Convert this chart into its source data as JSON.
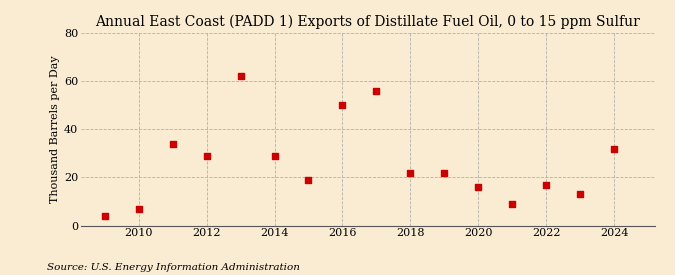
{
  "title": "Annual East Coast (PADD 1) Exports of Distillate Fuel Oil, 0 to 15 ppm Sulfur",
  "ylabel": "Thousand Barrels per Day",
  "source": "Source: U.S. Energy Information Administration",
  "background_color": "#faecd2",
  "plot_bg_color": "#faecd2",
  "marker_color": "#cc0000",
  "marker": "s",
  "marker_size": 4,
  "years": [
    2009,
    2010,
    2011,
    2012,
    2013,
    2014,
    2015,
    2016,
    2017,
    2018,
    2019,
    2020,
    2021,
    2022,
    2023,
    2024
  ],
  "values": [
    4,
    7,
    34,
    29,
    62,
    29,
    19,
    50,
    56,
    22,
    22,
    16,
    9,
    17,
    13,
    32
  ],
  "ylim": [
    0,
    80
  ],
  "yticks": [
    0,
    20,
    40,
    60,
    80
  ],
  "xlim": [
    2008.3,
    2025.2
  ],
  "xticks": [
    2010,
    2012,
    2014,
    2016,
    2018,
    2020,
    2022,
    2024
  ],
  "title_fontsize": 10,
  "label_fontsize": 8,
  "tick_fontsize": 8,
  "source_fontsize": 7.5,
  "grid_color": "#aaaaaa",
  "grid_linestyle": "--",
  "grid_linewidth": 0.6
}
